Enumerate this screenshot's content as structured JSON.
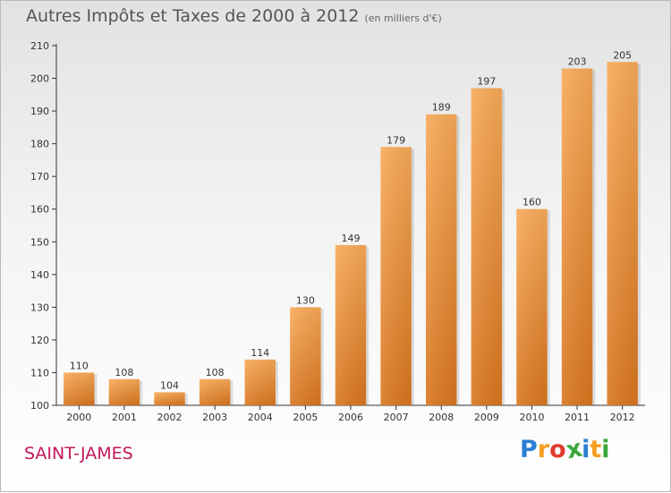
{
  "chart_data": {
    "type": "bar",
    "title": "Autres Impôts et Taxes de 2000 à 2012",
    "subtitle": "(en milliers d'€)",
    "categories": [
      "2000",
      "2001",
      "2002",
      "2003",
      "2004",
      "2005",
      "2006",
      "2007",
      "2008",
      "2009",
      "2010",
      "2011",
      "2012"
    ],
    "values": [
      110,
      108,
      104,
      108,
      114,
      130,
      149,
      179,
      189,
      197,
      160,
      203,
      205
    ],
    "ylim": [
      100,
      210
    ],
    "yticks": [
      100,
      110,
      120,
      130,
      140,
      150,
      160,
      170,
      180,
      190,
      200,
      210
    ],
    "grid": false,
    "bar_color": "#f0a050"
  },
  "location": "SAINT-JAMES",
  "logo": {
    "letters": [
      "P",
      "r",
      "o",
      "x",
      "i",
      "t",
      "i"
    ],
    "colors": [
      "#2a7fd4",
      "#f4a020",
      "#e23b2e",
      "#3aa83a",
      "#2a7fd4",
      "#f4a020",
      "#3aa83a"
    ]
  }
}
